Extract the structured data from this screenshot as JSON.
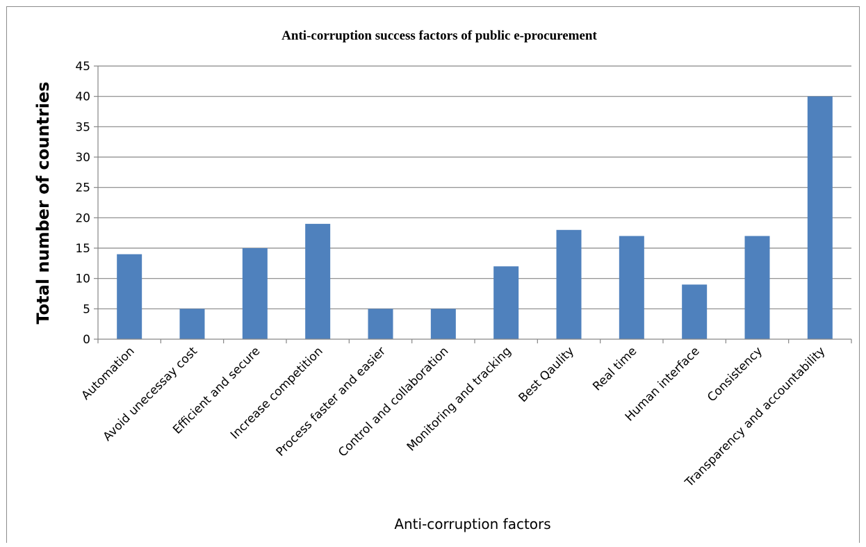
{
  "chart_data": {
    "type": "bar",
    "title": "Anti-corruption success factors of public e-procurement",
    "xlabel": "Anti-corruption factors",
    "ylabel": "Total number of countries",
    "categories": [
      "Automation",
      "Avoid unecessay cost",
      "Efficient and secure",
      "Increase competition",
      "Process faster and easier",
      "Control and collaboration",
      "Monitoring and tracking",
      "Best Qaulity",
      "Real time",
      "Human interface",
      "Consistency",
      "Transparency and accountability"
    ],
    "values": [
      14,
      5,
      15,
      19,
      5,
      5,
      12,
      18,
      17,
      9,
      17,
      40
    ],
    "ylim": [
      0,
      45
    ],
    "yticks": [
      "0",
      "5",
      "10",
      "15",
      "20",
      "25",
      "30",
      "35",
      "40",
      "45"
    ],
    "grid": true,
    "legend": "none",
    "bar_color": "#4f81bd",
    "grid_color": "#868686"
  }
}
